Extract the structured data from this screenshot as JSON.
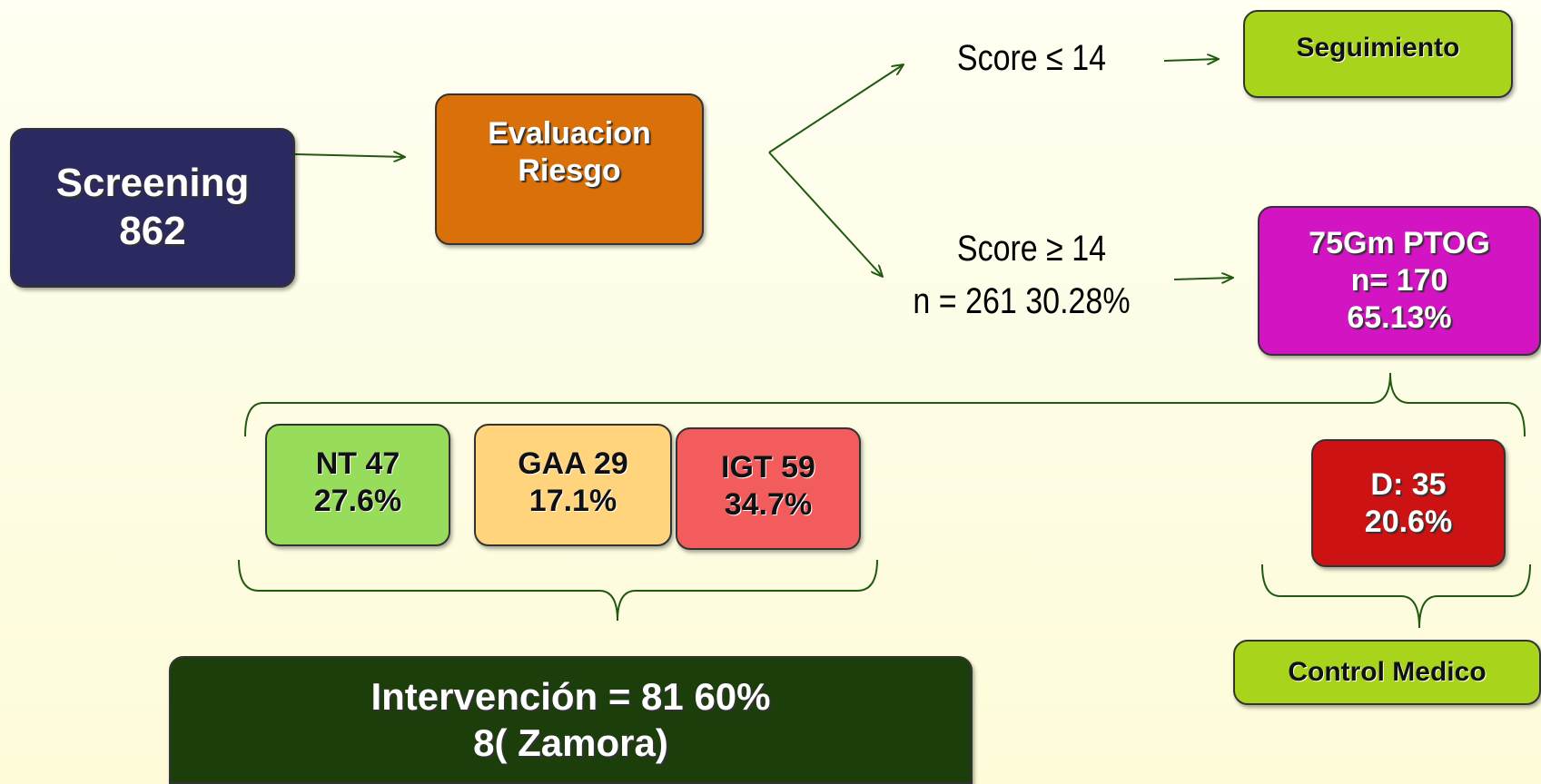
{
  "nodes": [
    {
      "id": "screening",
      "lines": [
        "Screening",
        "862"
      ]
    },
    {
      "id": "evaluacion",
      "lines": [
        "Evaluacion",
        "Riesgo"
      ]
    },
    {
      "id": "seguimiento",
      "lines": [
        "Seguimiento"
      ]
    },
    {
      "id": "ptog",
      "lines": [
        "75Gm  PTOG",
        "n= 170",
        "65.13%"
      ]
    },
    {
      "id": "nt",
      "lines": [
        "NT 47",
        "27.6%"
      ]
    },
    {
      "id": "gaa",
      "lines": [
        "GAA 29",
        "17.1%"
      ]
    },
    {
      "id": "igt",
      "lines": [
        "IGT 59",
        "34.7%"
      ]
    },
    {
      "id": "d",
      "lines": [
        "D: 35",
        "20.6%"
      ]
    },
    {
      "id": "control",
      "lines": [
        "Control Medico"
      ]
    },
    {
      "id": "intervencion",
      "lines": [
        "Intervención  = 81  60%",
        "8( Zamora)"
      ]
    }
  ],
  "labels": {
    "score_low": "Score ≤ 14",
    "score_high": "Score ≥ 14",
    "score_high_n": "n = 261  30.28%"
  }
}
